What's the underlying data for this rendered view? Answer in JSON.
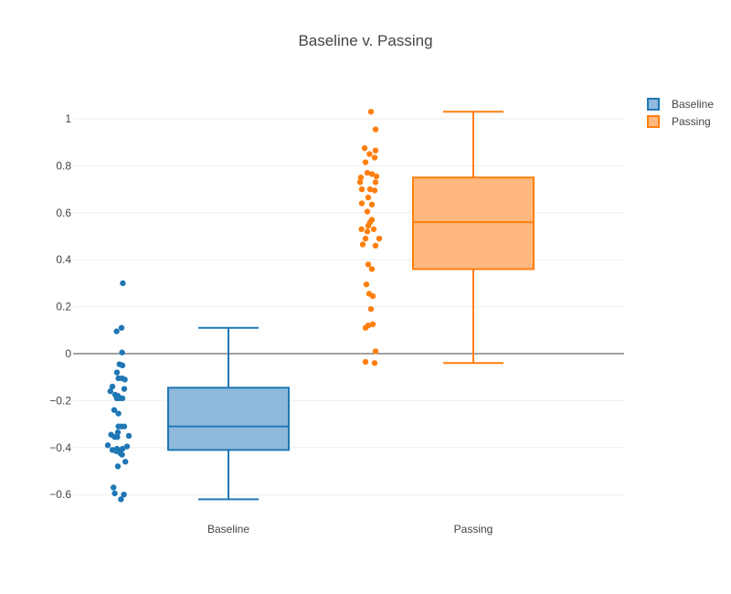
{
  "chart_data": {
    "type": "box",
    "title": "Baseline v. Passing",
    "xlabel": "",
    "ylabel": "",
    "ylim": [
      -0.68,
      1.1
    ],
    "yticks": [
      -0.6,
      -0.4,
      -0.2,
      0,
      0.2,
      0.4,
      0.6,
      0.8,
      1
    ],
    "ytick_labels": [
      "−0.6",
      "−0.4",
      "−0.2",
      "0",
      "0.2",
      "0.4",
      "0.6",
      "0.8",
      "1"
    ],
    "grid": true,
    "legend_position": "top-right",
    "categories": [
      "Baseline",
      "Passing"
    ],
    "series": [
      {
        "name": "Baseline",
        "color": "#1f77b4",
        "fill": "#8fb9dc",
        "box": {
          "min": -0.62,
          "q1": -0.41,
          "median": -0.31,
          "q3": -0.145,
          "max": 0.11
        },
        "points": [
          {
            "j": 0.22,
            "y": 0.3
          },
          {
            "j": 0.15,
            "y": 0.11
          },
          {
            "j": -0.12,
            "y": 0.095
          },
          {
            "j": 0.18,
            "y": 0.005
          },
          {
            "j": 0.04,
            "y": -0.045
          },
          {
            "j": 0.2,
            "y": -0.05
          },
          {
            "j": -0.1,
            "y": -0.08
          },
          {
            "j": -0.02,
            "y": -0.105
          },
          {
            "j": 0.18,
            "y": -0.105
          },
          {
            "j": 0.33,
            "y": -0.11
          },
          {
            "j": -0.35,
            "y": -0.14
          },
          {
            "j": 0.3,
            "y": -0.15
          },
          {
            "j": -0.46,
            "y": -0.16
          },
          {
            "j": -0.2,
            "y": -0.175
          },
          {
            "j": -0.05,
            "y": -0.18
          },
          {
            "j": 0.2,
            "y": -0.19
          },
          {
            "j": 0.04,
            "y": -0.19
          },
          {
            "j": -0.11,
            "y": -0.19
          },
          {
            "j": -0.25,
            "y": -0.24
          },
          {
            "j": -0.02,
            "y": -0.255
          },
          {
            "j": 0.12,
            "y": -0.31
          },
          {
            "j": 0.3,
            "y": -0.31
          },
          {
            "j": -0.02,
            "y": -0.31
          },
          {
            "j": -0.05,
            "y": -0.335
          },
          {
            "j": -0.42,
            "y": -0.345
          },
          {
            "j": 0.55,
            "y": -0.35
          },
          {
            "j": -0.22,
            "y": -0.355
          },
          {
            "j": -0.08,
            "y": -0.355
          },
          {
            "j": -0.6,
            "y": -0.39
          },
          {
            "j": 0.45,
            "y": -0.395
          },
          {
            "j": 0.2,
            "y": -0.405
          },
          {
            "j": -0.35,
            "y": -0.41
          },
          {
            "j": -0.1,
            "y": -0.405
          },
          {
            "j": 0.05,
            "y": -0.42
          },
          {
            "j": 0.18,
            "y": -0.43
          },
          {
            "j": -0.15,
            "y": -0.415
          },
          {
            "j": 0.1,
            "y": -0.425
          },
          {
            "j": 0.36,
            "y": -0.46
          },
          {
            "j": -0.05,
            "y": -0.48
          },
          {
            "j": -0.29,
            "y": -0.57
          },
          {
            "j": -0.22,
            "y": -0.595
          },
          {
            "j": 0.28,
            "y": -0.6
          },
          {
            "j": 0.12,
            "y": -0.62
          }
        ]
      },
      {
        "name": "Passing",
        "color": "#ff7f0e",
        "fill": "#ffb880",
        "box": {
          "min": -0.04,
          "q1": 0.36,
          "median": 0.56,
          "q3": 0.75,
          "max": 1.03
        },
        "points": [
          {
            "j": 0.3,
            "y": 1.03
          },
          {
            "j": 0.55,
            "y": 0.955
          },
          {
            "j": -0.05,
            "y": 0.875
          },
          {
            "j": 0.55,
            "y": 0.865
          },
          {
            "j": 0.22,
            "y": 0.85
          },
          {
            "j": 0.5,
            "y": 0.835
          },
          {
            "j": 0.0,
            "y": 0.815
          },
          {
            "j": 0.1,
            "y": 0.77
          },
          {
            "j": 0.35,
            "y": 0.765
          },
          {
            "j": 0.6,
            "y": 0.755
          },
          {
            "j": -0.25,
            "y": 0.75
          },
          {
            "j": 0.55,
            "y": 0.73
          },
          {
            "j": -0.3,
            "y": 0.73
          },
          {
            "j": 0.25,
            "y": 0.7
          },
          {
            "j": 0.5,
            "y": 0.695
          },
          {
            "j": -0.2,
            "y": 0.7
          },
          {
            "j": 0.15,
            "y": 0.665
          },
          {
            "j": 0.35,
            "y": 0.635
          },
          {
            "j": -0.2,
            "y": 0.64
          },
          {
            "j": 0.1,
            "y": 0.605
          },
          {
            "j": 0.35,
            "y": 0.57
          },
          {
            "j": 0.25,
            "y": 0.56
          },
          {
            "j": 0.15,
            "y": 0.545
          },
          {
            "j": -0.22,
            "y": 0.53
          },
          {
            "j": 0.1,
            "y": 0.52
          },
          {
            "j": 0.45,
            "y": 0.53
          },
          {
            "j": 0.0,
            "y": 0.49
          },
          {
            "j": 0.75,
            "y": 0.49
          },
          {
            "j": -0.15,
            "y": 0.465
          },
          {
            "j": 0.55,
            "y": 0.46
          },
          {
            "j": 0.15,
            "y": 0.38
          },
          {
            "j": 0.35,
            "y": 0.36
          },
          {
            "j": 0.05,
            "y": 0.295
          },
          {
            "j": 0.2,
            "y": 0.255
          },
          {
            "j": 0.4,
            "y": 0.245
          },
          {
            "j": 0.3,
            "y": 0.19
          },
          {
            "j": 0.4,
            "y": 0.125
          },
          {
            "j": 0.15,
            "y": 0.12
          },
          {
            "j": 0.0,
            "y": 0.11
          },
          {
            "j": 0.55,
            "y": 0.01
          },
          {
            "j": 0.0,
            "y": -0.035
          },
          {
            "j": 0.5,
            "y": -0.04
          }
        ]
      }
    ]
  }
}
